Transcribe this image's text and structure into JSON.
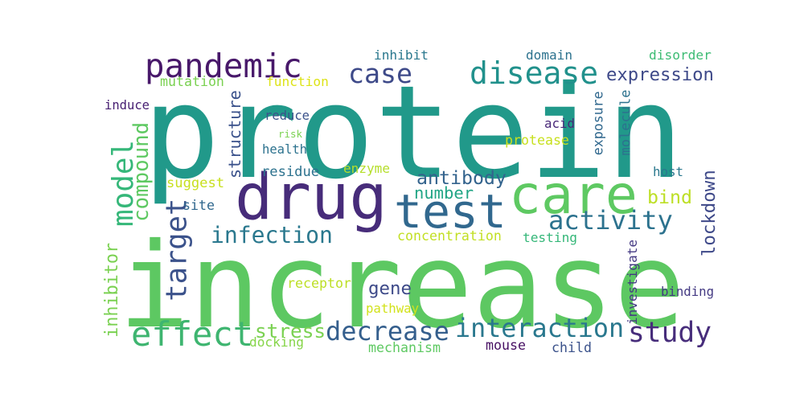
{
  "words": [
    {
      "text": "protein",
      "color": "#21998a"
    },
    {
      "text": "increase",
      "color": "#5dc862"
    },
    {
      "text": "drug",
      "color": "#472c7a"
    },
    {
      "text": "test",
      "color": "#31688e"
    },
    {
      "text": "care",
      "color": "#5ec962"
    },
    {
      "text": "pandemic",
      "color": "#48186a"
    },
    {
      "text": "effect",
      "color": "#3eb570"
    },
    {
      "text": "disease",
      "color": "#21918c"
    },
    {
      "text": "activity",
      "color": "#2c728e"
    },
    {
      "text": "interaction",
      "color": "#2a788e"
    },
    {
      "text": "study",
      "color": "#472d7b"
    },
    {
      "text": "decrease",
      "color": "#355f8d"
    },
    {
      "text": "infection",
      "color": "#2a788e"
    },
    {
      "text": "model",
      "color": "#35b779"
    },
    {
      "text": "target",
      "color": "#3b528b"
    },
    {
      "text": "case",
      "color": "#3e4a89"
    },
    {
      "text": "expression",
      "color": "#3e4989"
    },
    {
      "text": "antibody",
      "color": "#33638d"
    },
    {
      "text": "bind",
      "color": "#bddf26"
    },
    {
      "text": "structure",
      "color": "#3b528b"
    },
    {
      "text": "compound",
      "color": "#5ec962"
    },
    {
      "text": "lockdown",
      "color": "#3e4989"
    },
    {
      "text": "inhibitor",
      "color": "#7ad151"
    },
    {
      "text": "number",
      "color": "#21a585"
    },
    {
      "text": "gene",
      "color": "#3e4a89"
    },
    {
      "text": "stress",
      "color": "#7ad151"
    },
    {
      "text": "investigate",
      "color": "#443983"
    },
    {
      "text": "exposure",
      "color": "#31688e"
    },
    {
      "text": "molecule",
      "color": "#2c728e"
    },
    {
      "text": "receptor",
      "color": "#bddf26"
    },
    {
      "text": "pathway",
      "color": "#d2e21b"
    },
    {
      "text": "docking",
      "color": "#86d549"
    },
    {
      "text": "mechanism",
      "color": "#5ec962"
    },
    {
      "text": "mouse",
      "color": "#471063"
    },
    {
      "text": "child",
      "color": "#3b528b"
    },
    {
      "text": "binding",
      "color": "#443a83"
    },
    {
      "text": "concentration",
      "color": "#c2df23"
    },
    {
      "text": "testing",
      "color": "#35b779"
    },
    {
      "text": "inhibit",
      "color": "#2a788e"
    },
    {
      "text": "domain",
      "color": "#2c728e"
    },
    {
      "text": "disorder",
      "color": "#3dbc74"
    },
    {
      "text": "mutation",
      "color": "#7ad151"
    },
    {
      "text": "function",
      "color": "#dde318"
    },
    {
      "text": "induce",
      "color": "#482173"
    },
    {
      "text": "reduce",
      "color": "#3b528b"
    },
    {
      "text": "risk",
      "color": "#7ad151"
    },
    {
      "text": "health",
      "color": "#2c728e"
    },
    {
      "text": "residue",
      "color": "#2c728e"
    },
    {
      "text": "enzyme",
      "color": "#b5de2b"
    },
    {
      "text": "suggest",
      "color": "#c8e020"
    },
    {
      "text": "site",
      "color": "#31688e"
    },
    {
      "text": "acid",
      "color": "#482878"
    },
    {
      "text": "protease",
      "color": "#c8e020"
    },
    {
      "text": "host",
      "color": "#2a788e"
    }
  ]
}
